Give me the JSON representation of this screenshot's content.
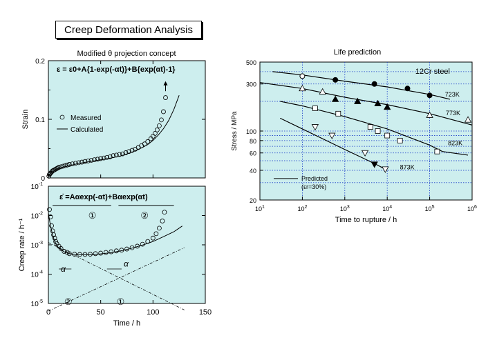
{
  "page": {
    "title": "Creep Deformation Analysis"
  },
  "chart_data": [
    {
      "id": "strain",
      "type": "scatter",
      "title": "Modified θ projection concept",
      "xlabel": "Time / h",
      "ylabel": "Strain",
      "xlim": [
        0,
        150
      ],
      "ylim": [
        0,
        0.2
      ],
      "yticks": [
        0,
        0.1,
        0.2
      ],
      "ytick_labels": [
        "0",
        "0.1",
        "0.2"
      ],
      "bg_color": "#cdeeee",
      "equation": "ε = ε0+A{1-exp(-αt)}+B{exp(αt)-1}",
      "legend": {
        "position": "center-left",
        "entries": [
          "Measured",
          "Calculated"
        ]
      },
      "series": [
        {
          "name": "Measured",
          "marker": "open-circle",
          "x": [
            0.5,
            1,
            1.5,
            2,
            3,
            4,
            5,
            6,
            7,
            8,
            9,
            10,
            12,
            14,
            16,
            18,
            20,
            23,
            26,
            29,
            32,
            35,
            38,
            41,
            44,
            47,
            50,
            53,
            56,
            59,
            62,
            65,
            68,
            71,
            74,
            77,
            80,
            83,
            86,
            89,
            92,
            95,
            98,
            100,
            102,
            104,
            106,
            108,
            110,
            112
          ],
          "y": [
            0.003,
            0.006,
            0.007,
            0.008,
            0.01,
            0.012,
            0.013,
            0.014,
            0.015,
            0.016,
            0.017,
            0.018,
            0.019,
            0.02,
            0.021,
            0.022,
            0.023,
            0.024,
            0.025,
            0.026,
            0.027,
            0.028,
            0.029,
            0.03,
            0.031,
            0.032,
            0.033,
            0.034,
            0.035,
            0.036,
            0.038,
            0.039,
            0.04,
            0.041,
            0.043,
            0.045,
            0.047,
            0.049,
            0.052,
            0.055,
            0.058,
            0.062,
            0.067,
            0.071,
            0.076,
            0.082,
            0.089,
            0.099,
            0.113,
            0.137
          ]
        },
        {
          "name": "Calculated",
          "marker": "line",
          "x": [
            0,
            1,
            2,
            4,
            6,
            8,
            10,
            15,
            20,
            30,
            40,
            50,
            60,
            70,
            80,
            90,
            95,
            100,
            105,
            110,
            115,
            120,
            125
          ],
          "y": [
            0.002,
            0.006,
            0.008,
            0.011,
            0.013,
            0.015,
            0.016,
            0.019,
            0.021,
            0.025,
            0.028,
            0.031,
            0.034,
            0.038,
            0.044,
            0.052,
            0.057,
            0.064,
            0.073,
            0.084,
            0.098,
            0.117,
            0.141
          ]
        }
      ]
    },
    {
      "id": "rate",
      "type": "scatter",
      "xlabel": "Time / h",
      "ylabel": "Creep rate / h⁻¹",
      "xlim": [
        0,
        150
      ],
      "xticks": [
        0,
        50,
        100,
        150
      ],
      "ylog": true,
      "ylim_exp": [
        -5,
        -1
      ],
      "bg_color": "#cdeeee",
      "equation": "ε̇ =Aαexp(-αt)+Bαexp(αt)",
      "annotations": {
        "term1": "①",
        "term2": "②",
        "alpha": "α"
      },
      "series": [
        {
          "name": "Measured",
          "marker": "open-circle",
          "x": [
            1,
            2,
            3,
            4,
            5,
            6,
            7,
            8,
            10,
            12,
            15,
            18,
            20,
            25,
            30,
            35,
            40,
            45,
            50,
            55,
            60,
            65,
            70,
            75,
            80,
            85,
            90,
            95,
            100,
            103,
            106,
            109,
            111
          ],
          "y": [
            0.016,
            0.009,
            0.0045,
            0.003,
            0.0022,
            0.0017,
            0.0013,
            0.0011,
            0.0009,
            0.00075,
            0.0006,
            0.00055,
            0.0005,
            0.00048,
            0.00047,
            0.00047,
            0.00048,
            0.0005,
            0.00052,
            0.00055,
            0.00058,
            0.00062,
            0.00066,
            0.00072,
            0.0008,
            0.0009,
            0.00105,
            0.0013,
            0.0017,
            0.0024,
            0.0037,
            0.0065,
            0.013
          ]
        },
        {
          "name": "Calculated",
          "marker": "line",
          "x": [
            0,
            2,
            4,
            6,
            8,
            10,
            15,
            20,
            25,
            30,
            40,
            50,
            60,
            70,
            80,
            90,
            100,
            110,
            120,
            128
          ],
          "y": [
            0.012,
            0.0045,
            0.0022,
            0.0013,
            0.00095,
            0.00078,
            0.00058,
            0.0005,
            0.00047,
            0.00046,
            0.00046,
            0.00049,
            0.00054,
            0.00063,
            0.00077,
            0.00098,
            0.0013,
            0.0019,
            0.0028,
            0.0044
          ]
        },
        {
          "name": "term1",
          "marker": "dashdot",
          "x": [
            0,
            130
          ],
          "y": [
            0.0012,
            6e-06
          ]
        },
        {
          "name": "term2",
          "marker": "dashdot",
          "x": [
            0,
            130
          ],
          "y": [
            5.5e-06,
            0.0008
          ]
        }
      ]
    },
    {
      "id": "life",
      "type": "scatter",
      "title": "Life prediction",
      "xlabel": "Time to rupture / h",
      "ylabel": "Stress / MPa",
      "xlog": true,
      "xlim_exp": [
        1,
        6
      ],
      "ylog": true,
      "ylim": [
        20,
        500
      ],
      "yticks": [
        20,
        40,
        60,
        80,
        100,
        300,
        500
      ],
      "bg_color": "#cdeeee",
      "steel_label": "12Cr steel",
      "predicted_label": "Predicted",
      "predicted_cond": "(εr=30%)",
      "series": [
        {
          "name": "723K",
          "marker": "filled-circle",
          "x": [
            100,
            600,
            5000,
            30000,
            100000
          ],
          "y": [
            360,
            330,
            300,
            270,
            230
          ],
          "curve_x": [
            20,
            100,
            1000,
            10000,
            100000,
            300000
          ],
          "curve_y": [
            400,
            370,
            320,
            280,
            235,
            210
          ]
        },
        {
          "name": "773K",
          "marker": "triangle",
          "x": [
            100,
            300,
            600,
            2000,
            6000,
            10000,
            100000,
            800000
          ],
          "y": [
            270,
            250,
            210,
            200,
            190,
            175,
            145,
            130
          ],
          "filled": [
            false,
            false,
            true,
            true,
            true,
            true,
            false,
            false
          ],
          "curve_x": [
            10,
            100,
            1000,
            10000,
            100000,
            1000000
          ],
          "curve_y": [
            310,
            270,
            220,
            185,
            150,
            115
          ]
        },
        {
          "name": "823K",
          "marker": "square",
          "x": [
            200,
            700,
            4000,
            6000,
            10000,
            20000,
            150000
          ],
          "y": [
            170,
            150,
            110,
            100,
            90,
            80,
            62
          ],
          "filled": [
            false,
            false,
            false,
            false,
            false,
            false,
            false
          ],
          "curve_x": [
            30,
            100,
            1000,
            10000,
            100000,
            200000,
            800000
          ],
          "curve_y": [
            200,
            180,
            140,
            105,
            72,
            62,
            57
          ]
        },
        {
          "name": "873K",
          "marker": "inv-triangle",
          "x": [
            200,
            500,
            3000,
            5000,
            9000
          ],
          "y": [
            110,
            90,
            60,
            46,
            41
          ],
          "filled": [
            false,
            false,
            false,
            true,
            false
          ],
          "curve_x": [
            30,
            100,
            1000,
            3000,
            6000,
            10000
          ],
          "curve_y": [
            135,
            105,
            65,
            52,
            45,
            40
          ]
        }
      ]
    }
  ]
}
